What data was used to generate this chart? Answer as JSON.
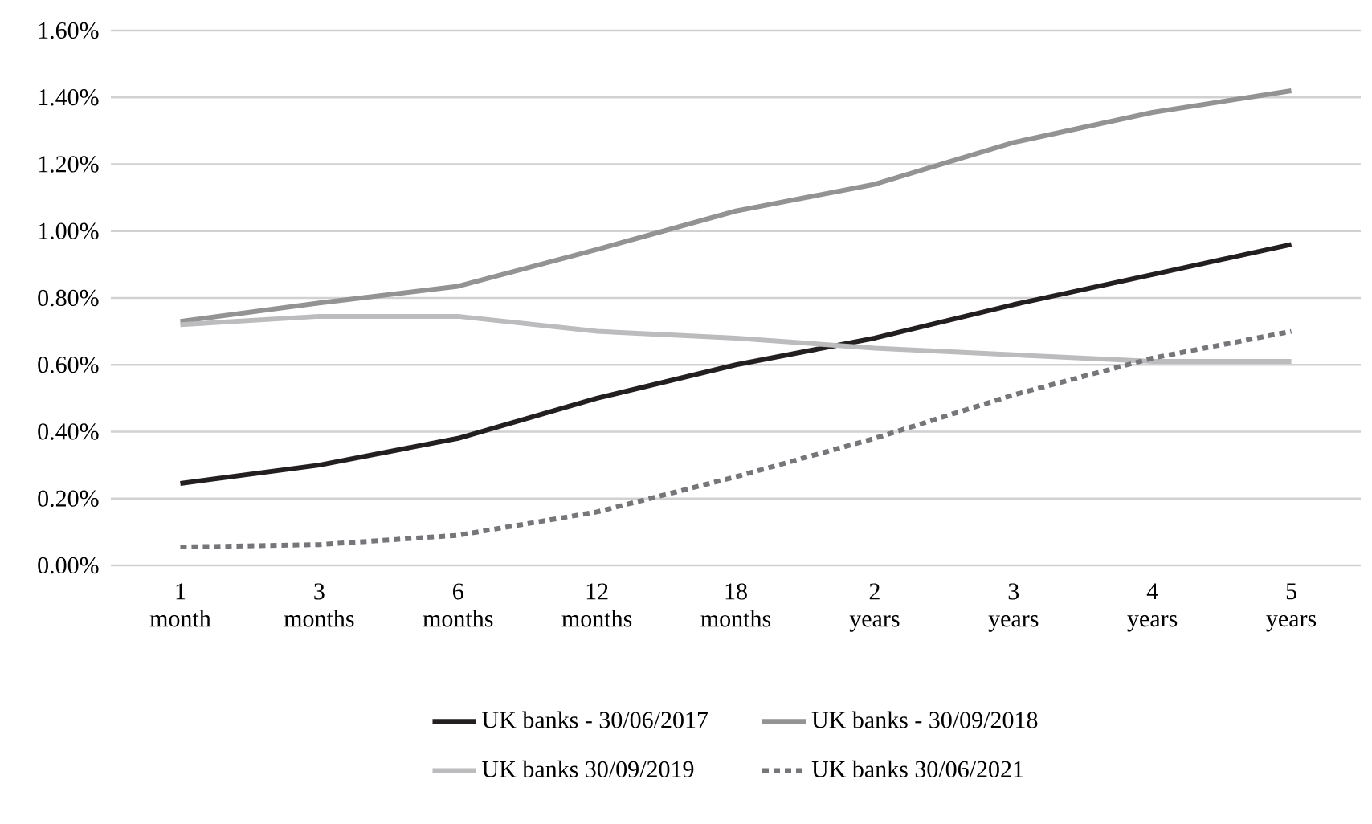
{
  "chart_data": {
    "type": "line",
    "categories": [
      "1 month",
      "3 months",
      "6 months",
      "12 months",
      "18 months",
      "2 years",
      "3 years",
      "4 years",
      "5 years"
    ],
    "series": [
      {
        "name": "UK banks - 30/06/2017",
        "color": "#231f20",
        "values": [
          0.245,
          0.3,
          0.38,
          0.5,
          0.6,
          0.68,
          0.78,
          0.87,
          0.96
        ]
      },
      {
        "name": "UK banks - 30/09/2018",
        "color": "#939393",
        "values": [
          0.73,
          0.785,
          0.835,
          0.945,
          1.06,
          1.14,
          1.265,
          1.355,
          1.42
        ]
      },
      {
        "name": "UK banks 30/09/2019",
        "color": "#bcbcbe",
        "values": [
          0.72,
          0.745,
          0.745,
          0.7,
          0.68,
          0.65,
          0.63,
          0.61,
          0.61
        ]
      },
      {
        "name": "UK banks 30/06/2021",
        "color": "#76767a",
        "line_style": "dashed",
        "values": [
          0.055,
          0.062,
          0.09,
          0.16,
          0.265,
          0.38,
          0.51,
          0.62,
          0.7
        ]
      }
    ],
    "ylim": [
      0,
      1.6
    ],
    "yticks": [
      {
        "value": 0,
        "label": "0.00%"
      },
      {
        "value": 0.2,
        "label": "0.20%"
      },
      {
        "value": 0.4,
        "label": "0.40%"
      },
      {
        "value": 0.6,
        "label": "0.60%"
      },
      {
        "value": 0.8,
        "label": "0.80%"
      },
      {
        "value": 1.0,
        "label": "1.00%"
      },
      {
        "value": 1.2,
        "label": "1.20%"
      },
      {
        "value": 1.4,
        "label": "1.40%"
      },
      {
        "value": 1.6,
        "label": "1.60%"
      }
    ],
    "grid": "y",
    "legend": "bottom",
    "marker": "none"
  }
}
